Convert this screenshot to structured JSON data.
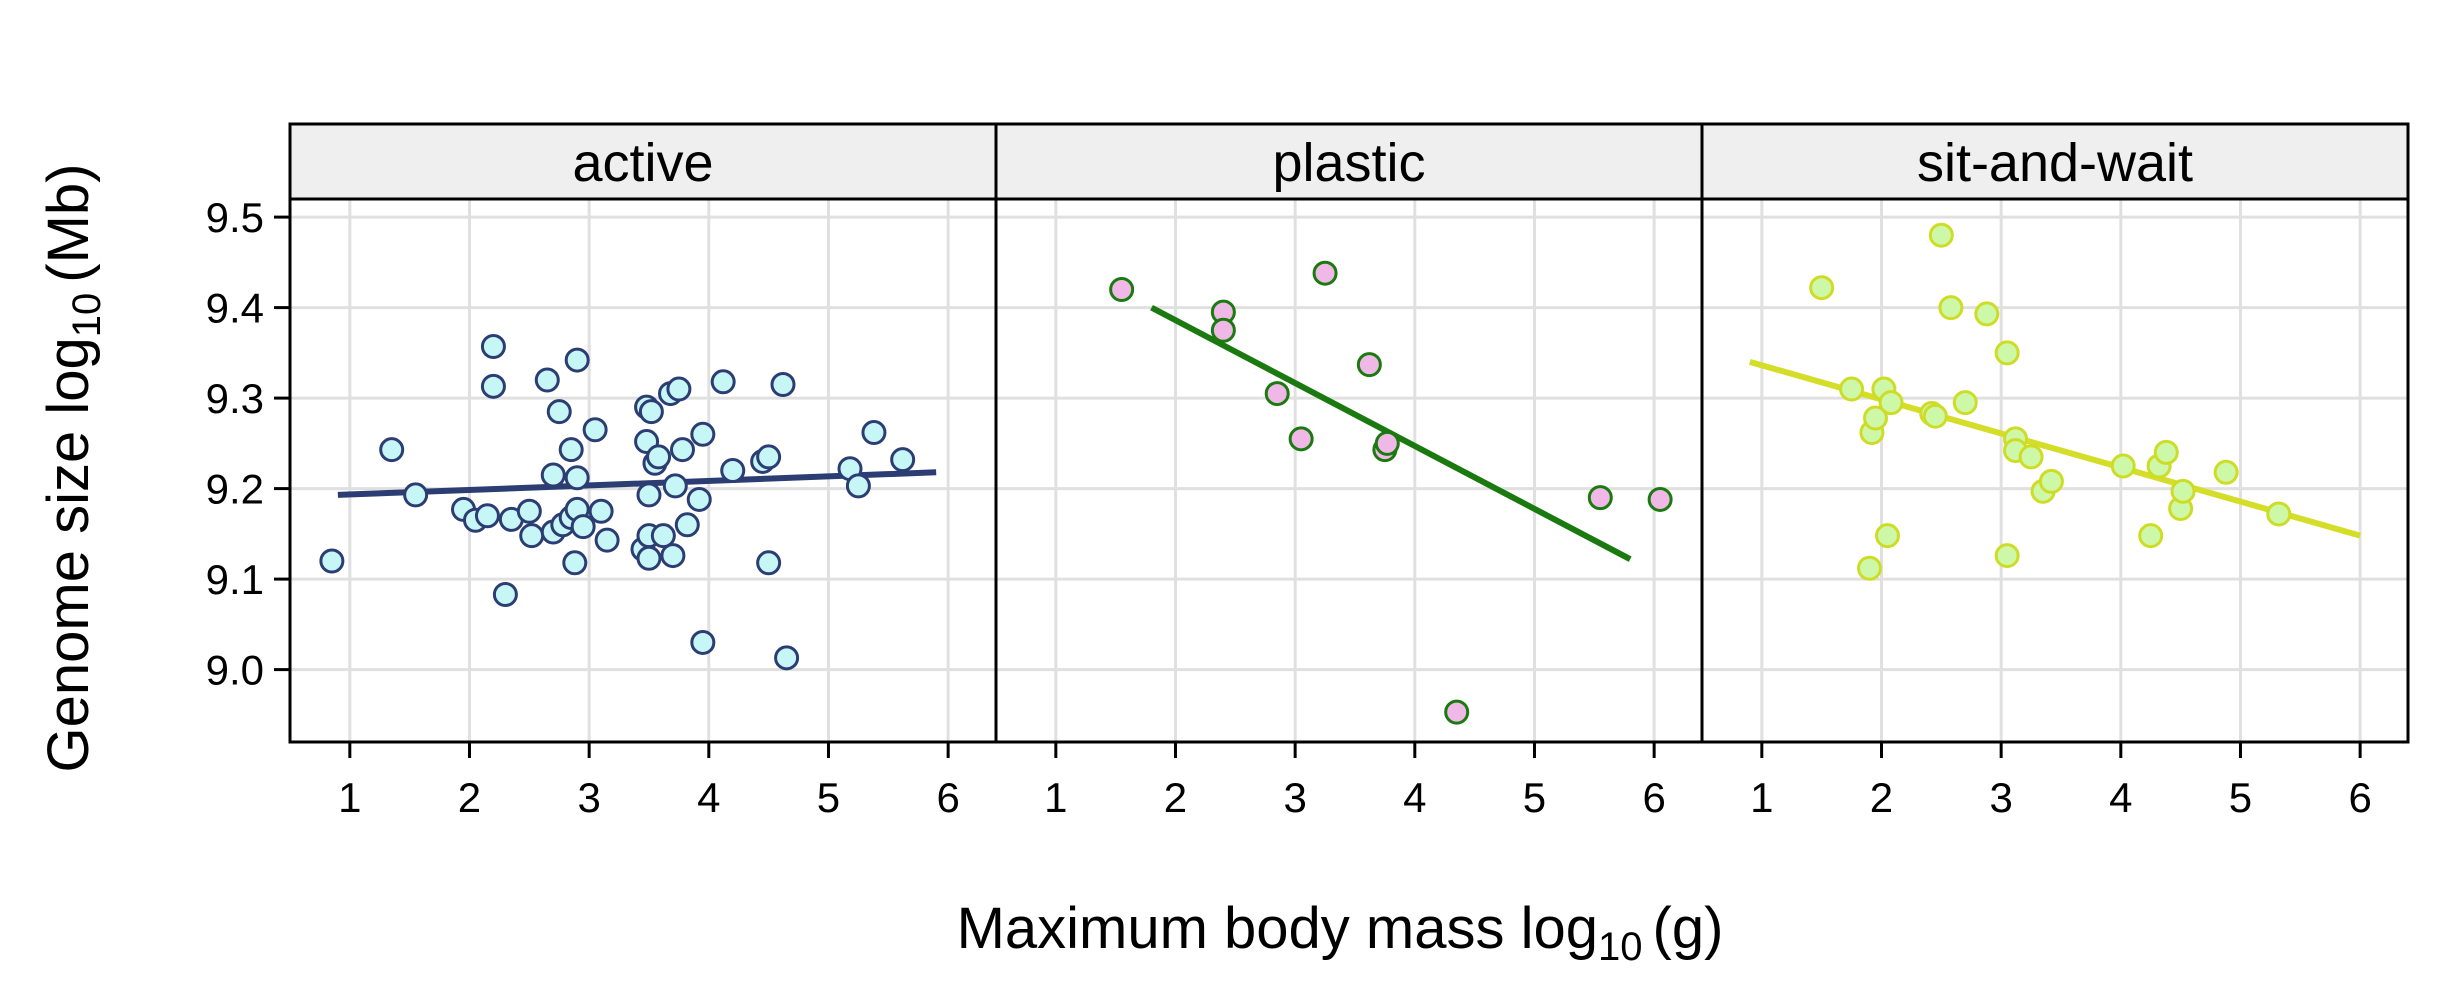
{
  "chart_data": {
    "type": "scatter",
    "layout": "faceted",
    "xlabel": {
      "prefix": "Maximum body mass log",
      "sub": "10",
      "unit": "(g)"
    },
    "ylabel": {
      "prefix": "Genome size log",
      "sub": "10",
      "unit": "(Mb)"
    },
    "xlim": [
      0.5,
      6.4
    ],
    "ylim": [
      8.92,
      9.52
    ],
    "x_ticks": [
      1,
      2,
      3,
      4,
      5,
      6
    ],
    "y_ticks": [
      9.0,
      9.1,
      9.2,
      9.3,
      9.4,
      9.5
    ],
    "y_tick_labels": [
      "9.0",
      "9.1",
      "9.2",
      "9.3",
      "9.4",
      "9.5"
    ],
    "grid": true,
    "panels": [
      {
        "strip": "active",
        "point_fill": "#c6f6f6",
        "point_stroke": "#2c3d73",
        "line_color": "#2c3d73",
        "fit_line": [
          [
            0.9,
            9.193
          ],
          [
            5.9,
            9.218
          ]
        ],
        "points": [
          [
            0.85,
            9.12
          ],
          [
            1.35,
            9.243
          ],
          [
            1.55,
            9.193
          ],
          [
            1.95,
            9.177
          ],
          [
            2.05,
            9.165
          ],
          [
            2.15,
            9.17
          ],
          [
            2.2,
            9.357
          ],
          [
            2.2,
            9.313
          ],
          [
            2.3,
            9.083
          ],
          [
            2.35,
            9.166
          ],
          [
            2.5,
            9.175
          ],
          [
            2.52,
            9.148
          ],
          [
            2.65,
            9.32
          ],
          [
            2.7,
            9.152
          ],
          [
            2.7,
            9.215
          ],
          [
            2.75,
            9.285
          ],
          [
            2.78,
            9.16
          ],
          [
            2.85,
            9.168
          ],
          [
            2.85,
            9.243
          ],
          [
            2.88,
            9.118
          ],
          [
            2.9,
            9.212
          ],
          [
            2.9,
            9.177
          ],
          [
            2.9,
            9.342
          ],
          [
            2.95,
            9.158
          ],
          [
            3.05,
            9.265
          ],
          [
            3.1,
            9.175
          ],
          [
            3.15,
            9.143
          ],
          [
            3.45,
            9.133
          ],
          [
            3.48,
            9.29
          ],
          [
            3.48,
            9.252
          ],
          [
            3.5,
            9.148
          ],
          [
            3.5,
            9.123
          ],
          [
            3.5,
            9.193
          ],
          [
            3.52,
            9.285
          ],
          [
            3.55,
            9.228
          ],
          [
            3.58,
            9.235
          ],
          [
            3.62,
            9.148
          ],
          [
            3.68,
            9.305
          ],
          [
            3.7,
            9.126
          ],
          [
            3.72,
            9.203
          ],
          [
            3.75,
            9.31
          ],
          [
            3.78,
            9.243
          ],
          [
            3.82,
            9.16
          ],
          [
            3.92,
            9.188
          ],
          [
            3.95,
            9.26
          ],
          [
            3.95,
            9.03
          ],
          [
            4.12,
            9.318
          ],
          [
            4.2,
            9.22
          ],
          [
            4.45,
            9.23
          ],
          [
            4.5,
            9.118
          ],
          [
            4.5,
            9.235
          ],
          [
            4.62,
            9.315
          ],
          [
            4.65,
            9.013
          ],
          [
            5.18,
            9.222
          ],
          [
            5.25,
            9.203
          ],
          [
            5.38,
            9.262
          ],
          [
            5.62,
            9.232
          ]
        ]
      },
      {
        "strip": "plastic",
        "point_fill": "#f0b8e6",
        "point_stroke": "#1a7a10",
        "line_color": "#1a7a10",
        "fit_line": [
          [
            1.8,
            9.4
          ],
          [
            5.8,
            9.122
          ]
        ],
        "points": [
          [
            1.55,
            9.42
          ],
          [
            2.4,
            9.395
          ],
          [
            2.4,
            9.375
          ],
          [
            2.85,
            9.305
          ],
          [
            3.05,
            9.255
          ],
          [
            3.25,
            9.438
          ],
          [
            3.62,
            9.337
          ],
          [
            3.75,
            9.243
          ],
          [
            3.77,
            9.25
          ],
          [
            4.35,
            8.953
          ],
          [
            5.55,
            9.19
          ],
          [
            6.05,
            9.188
          ]
        ]
      },
      {
        "strip": "sit-and-wait",
        "point_fill": "#cdf8a8",
        "point_stroke": "#cfdc26",
        "line_color": "#d4de28",
        "fit_line": [
          [
            0.9,
            9.34
          ],
          [
            6.0,
            9.148
          ]
        ],
        "points": [
          [
            1.5,
            9.422
          ],
          [
            1.75,
            9.31
          ],
          [
            1.9,
            9.112
          ],
          [
            1.92,
            9.262
          ],
          [
            1.95,
            9.278
          ],
          [
            2.02,
            9.31
          ],
          [
            2.05,
            9.148
          ],
          [
            2.08,
            9.295
          ],
          [
            2.42,
            9.283
          ],
          [
            2.45,
            9.28
          ],
          [
            2.5,
            9.48
          ],
          [
            2.58,
            9.4
          ],
          [
            2.7,
            9.295
          ],
          [
            2.88,
            9.393
          ],
          [
            3.05,
            9.35
          ],
          [
            3.05,
            9.126
          ],
          [
            3.12,
            9.255
          ],
          [
            3.12,
            9.242
          ],
          [
            3.25,
            9.235
          ],
          [
            3.35,
            9.197
          ],
          [
            3.42,
            9.208
          ],
          [
            4.02,
            9.225
          ],
          [
            4.25,
            9.148
          ],
          [
            4.32,
            9.225
          ],
          [
            4.38,
            9.24
          ],
          [
            4.5,
            9.178
          ],
          [
            4.52,
            9.197
          ],
          [
            4.88,
            9.218
          ],
          [
            5.32,
            9.172
          ]
        ]
      }
    ]
  }
}
